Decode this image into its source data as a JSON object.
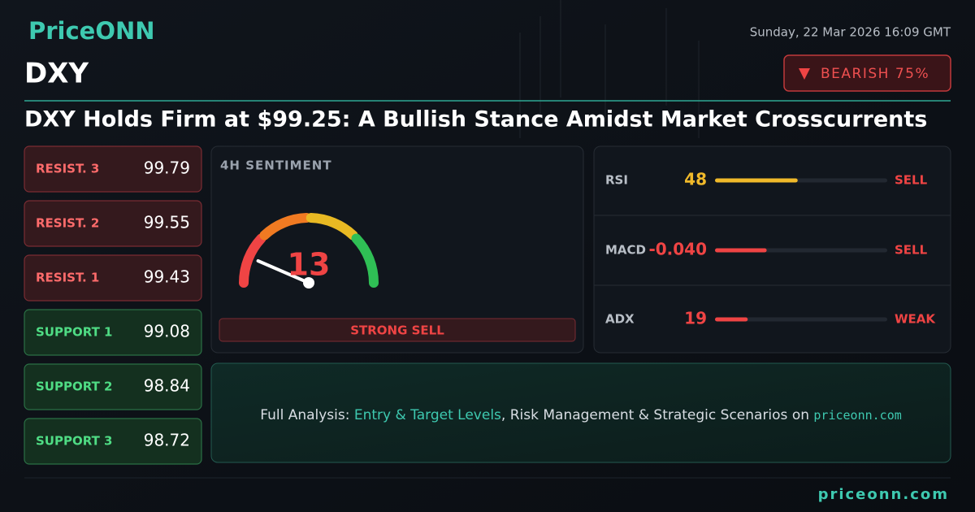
{
  "header": {
    "logo": "PriceONN",
    "datetime": "Sunday, 22 Mar 2026 16:09 GMT",
    "symbol": "DXY",
    "badge": "BEARISH 75%",
    "headline": "DXY Holds Firm at $99.25: A Bullish Stance Amidst Market Crosscurrents"
  },
  "levels": [
    {
      "label": "RESIST. 3",
      "value": 99.79,
      "color": "#ff6b6b"
    },
    {
      "label": "RESIST. 2",
      "value": 99.55,
      "color": "#ff6b6b"
    },
    {
      "label": "RESIST. 1",
      "value": 99.43,
      "color": "#ff6b6b"
    },
    {
      "label": "SUPPORT 1",
      "value": 99.08,
      "color": "#4fdc84"
    },
    {
      "label": "SUPPORT 2",
      "value": 98.84,
      "color": "#4fdc84"
    },
    {
      "label": "SUPPORT 3",
      "value": 98.72,
      "color": "#4fdc84"
    }
  ],
  "gauge": {
    "title": "4H SENTIMENT",
    "value": 13,
    "range": [
      0,
      100
    ],
    "signal": "STRONG SELL",
    "color": "#ef4444"
  },
  "indicators": [
    {
      "name": "RSI",
      "value": 48,
      "range": [
        0,
        100
      ],
      "signal": "SELL",
      "color": "#f0b92a",
      "signal_color": "#ef4444"
    },
    {
      "name": "MACD",
      "value": -0.04,
      "value_label": "-0.040",
      "range": [
        -0.1,
        0.1
      ],
      "signal": "SELL",
      "color": "#ef4444",
      "signal_color": "#ef4444"
    },
    {
      "name": "ADX",
      "value": 19,
      "range": [
        0,
        100
      ],
      "signal": "WEAK",
      "color": "#ef4444",
      "signal_color": "#ef4444"
    }
  ],
  "cta": {
    "segments": [
      "Full Analysis: ",
      "Entry & Target Levels",
      ", Risk Management & Strategic Scenarios on ",
      "priceonn.com"
    ]
  },
  "footer": "priceonn.com"
}
